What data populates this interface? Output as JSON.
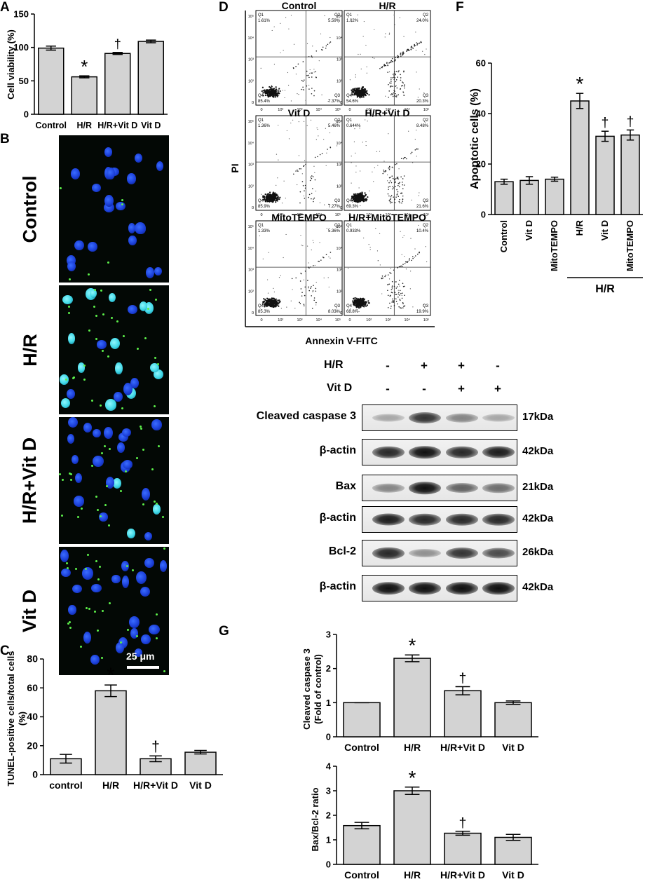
{
  "panels": {
    "A": "A",
    "B": "B",
    "C": "C",
    "D": "D",
    "F": "F",
    "G": "G"
  },
  "panelA": {
    "chart_data": {
      "type": "bar",
      "ylabel": "Cell viability (%)",
      "xlabel": "",
      "categories": [
        "Control",
        "H/R",
        "H/R+Vit D",
        "Vit D"
      ],
      "values": [
        99,
        56,
        91,
        109
      ],
      "errors": [
        3,
        1.5,
        1.5,
        2
      ],
      "annotations": [
        "",
        "*",
        "†",
        ""
      ],
      "ylim": [
        0,
        150
      ],
      "yticks": [
        "0",
        "50",
        "100",
        "150"
      ]
    }
  },
  "panelB": {
    "rows": [
      "Control",
      "H/R",
      "H/R+Vit D",
      "Vit D"
    ],
    "scalebar": "25 μm"
  },
  "panelC": {
    "chart_data": {
      "type": "bar",
      "ylabel_line1": "TUNEL-positive cells/total cells",
      "ylabel_line2": "(%)",
      "xlabel": "",
      "categories": [
        "control",
        "H/R",
        "H/R+Vit D",
        "Vit D"
      ],
      "values": [
        11,
        58,
        11,
        15.5
      ],
      "errors": [
        3,
        4,
        2,
        1.2
      ],
      "annotations": [
        "",
        "*",
        "†",
        ""
      ],
      "ylim": [
        0,
        80
      ],
      "yticks": [
        "0",
        "20",
        "40",
        "60",
        "80"
      ]
    }
  },
  "panelD": {
    "ylabel": "PI",
    "xlabel": "Annexin V-FITC",
    "plots": [
      {
        "title": "Control",
        "q1": "1.61%",
        "q2": "5.59%",
        "q3": "7.37%",
        "q4": "85.4%"
      },
      {
        "title": "H/R",
        "q1": "1.02%",
        "q2": "24.0%",
        "q3": "20.3%",
        "q4": "54.6%"
      },
      {
        "title": "Vit D",
        "q1": "1.36%",
        "q2": "5.46%",
        "q3": "7.27%",
        "q4": "85.9%"
      },
      {
        "title": "H/R+Vit D",
        "q1": "0.644%",
        "q2": "8.48%",
        "q3": "21.6%",
        "q4": "69.3%"
      },
      {
        "title": "MitoTEMPO",
        "q1": "1.33%",
        "q2": "5.36%",
        "q3": "8.03%",
        "q4": "85.3%"
      },
      {
        "title": "H/R+MitoTEMPO",
        "q1": "0.933%",
        "q2": "10.4%",
        "q3": "19.9%",
        "q4": "68.8%"
      }
    ],
    "quadrant_names": [
      "Q1",
      "Q2",
      "Q3",
      "Q4"
    ],
    "axis_ticks": [
      "0",
      "10²",
      "10³",
      "10⁴",
      "10⁵"
    ]
  },
  "panelF": {
    "chart_data": {
      "type": "bar",
      "ylabel": "Apoptotic cells (%)",
      "xlabel": "",
      "categories": [
        "Control",
        "Vit D",
        "MitoTEMPO",
        "H/R",
        "Vit D",
        "MitoTEMPO"
      ],
      "values": [
        13,
        13.5,
        14,
        45,
        31,
        31.5
      ],
      "errors": [
        1,
        1.5,
        0.8,
        3,
        2,
        2
      ],
      "annotations": [
        "",
        "",
        "",
        "*",
        "†",
        "†"
      ],
      "ylim": [
        0,
        60
      ],
      "yticks": [
        "0",
        "20",
        "40",
        "60"
      ],
      "group_label": "H/R"
    }
  },
  "westernBlot": {
    "treatment_rows": [
      {
        "label": "H/R",
        "signs": [
          "-",
          "+",
          "+",
          "-"
        ]
      },
      {
        "label": "Vit D",
        "signs": [
          "-",
          "-",
          "+",
          "+"
        ]
      }
    ],
    "blots": [
      {
        "label": "Cleaved caspase 3",
        "kda": "17kDa",
        "intensity": [
          0.3,
          0.8,
          0.45,
          0.3
        ]
      },
      {
        "label": "β-actin",
        "kda": "42kDa",
        "intensity": [
          0.85,
          0.95,
          0.85,
          0.9
        ]
      },
      {
        "label": "Bax",
        "kda": "21kDa",
        "intensity": [
          0.45,
          0.95,
          0.6,
          0.55
        ]
      },
      {
        "label": "β-actin",
        "kda": "42kDa",
        "intensity": [
          0.9,
          0.85,
          0.85,
          0.85
        ]
      },
      {
        "label": "Bcl-2",
        "kda": "26kDa",
        "intensity": [
          0.85,
          0.4,
          0.8,
          0.7
        ]
      },
      {
        "label": "β-actin",
        "kda": "42kDa",
        "intensity": [
          0.95,
          0.95,
          0.95,
          0.95
        ]
      }
    ]
  },
  "panelG1": {
    "chart_data": {
      "type": "bar",
      "ylabel_line1": "Cleaved caspase 3",
      "ylabel_line2": "(Fold of control)",
      "xlabel": "",
      "categories": [
        "Control",
        "H/R",
        "H/R+Vit D",
        "Vit D"
      ],
      "values": [
        1,
        2.3,
        1.35,
        1.0
      ],
      "errors": [
        0,
        0.1,
        0.12,
        0.05
      ],
      "annotations": [
        "",
        "*",
        "†",
        ""
      ],
      "ylim": [
        0,
        3
      ],
      "yticks": [
        "0",
        "1",
        "2",
        "3"
      ]
    }
  },
  "panelG2": {
    "chart_data": {
      "type": "bar",
      "ylabel": "Bax/Bcl-2 ratio",
      "xlabel": "",
      "categories": [
        "Control",
        "H/R",
        "H/R+Vit D",
        "Vit D"
      ],
      "values": [
        1.58,
        3.0,
        1.27,
        1.1
      ],
      "errors": [
        0.13,
        0.15,
        0.08,
        0.12
      ],
      "annotations": [
        "",
        "*",
        "†",
        ""
      ],
      "ylim": [
        0,
        4
      ],
      "yticks": [
        "0",
        "1",
        "2",
        "3",
        "4"
      ]
    }
  }
}
